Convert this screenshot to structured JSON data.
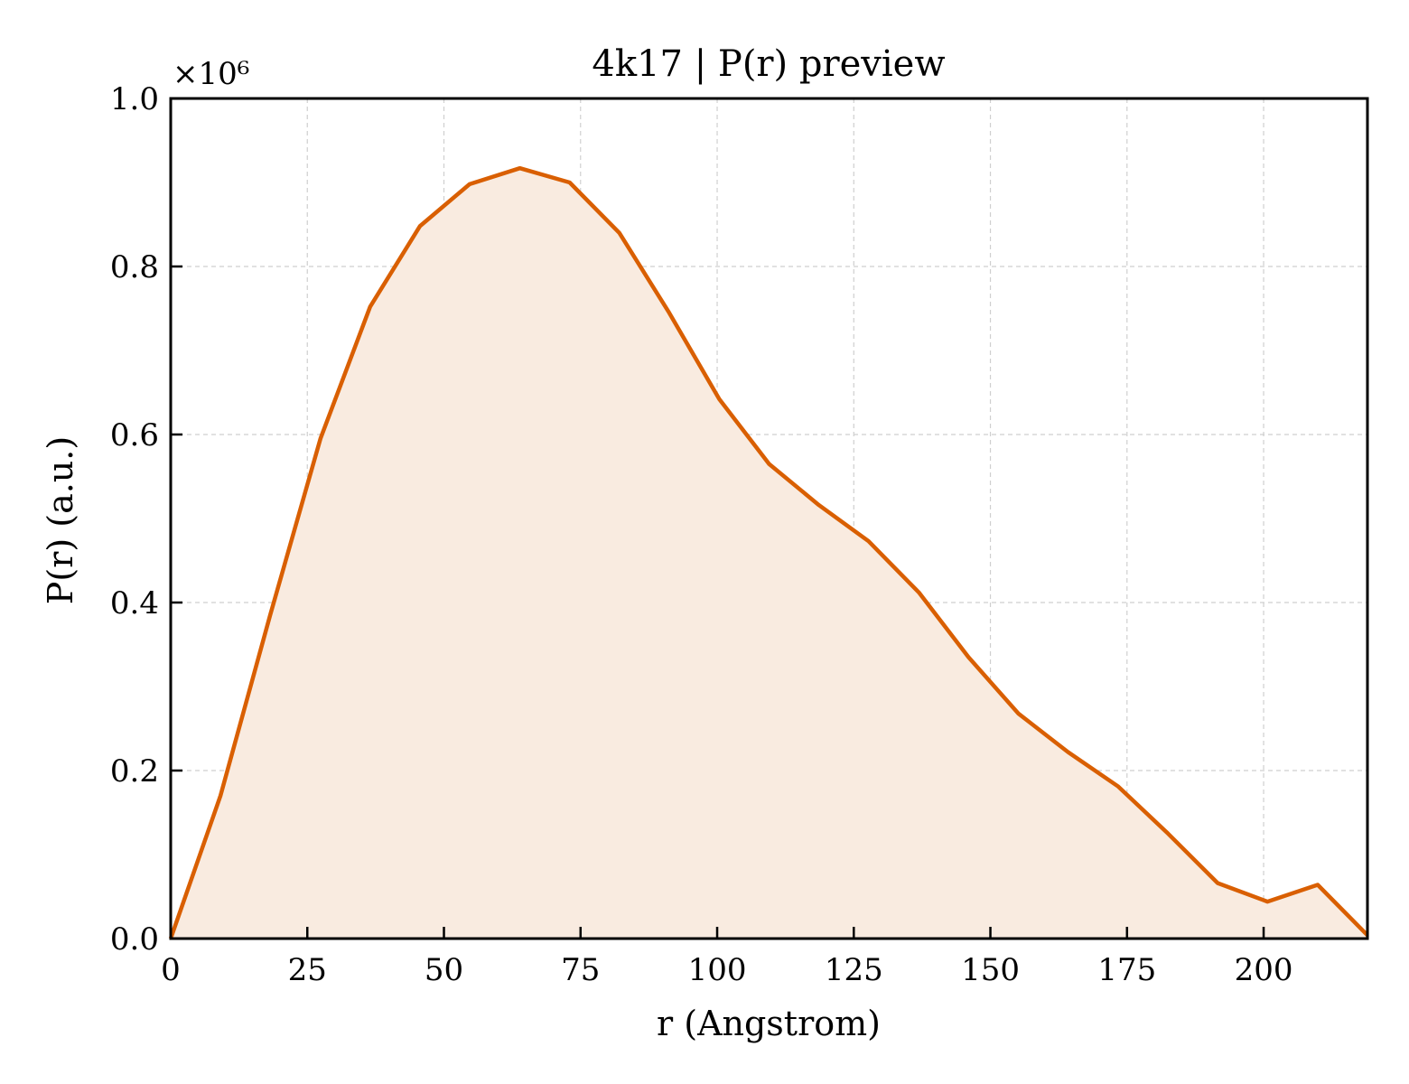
{
  "chart_data": {
    "type": "area",
    "title": "4k17 | P(r) preview",
    "xlabel": "r (Angstrom)",
    "ylabel": "P(r) (a.u.)",
    "y_offset_label": "×10⁶",
    "xlim": [
      0,
      219
    ],
    "ylim": [
      0,
      1.0
    ],
    "y_scale_factor": 1000000,
    "xticks": [
      0,
      25,
      50,
      75,
      100,
      125,
      150,
      175,
      200
    ],
    "xtick_labels": [
      "0",
      "25",
      "50",
      "75",
      "100",
      "125",
      "150",
      "175",
      "200"
    ],
    "yticks": [
      0.0,
      0.2,
      0.4,
      0.6,
      0.8,
      1.0
    ],
    "ytick_labels": [
      "0.0",
      "0.2",
      "0.4",
      "0.6",
      "0.8",
      "1.0"
    ],
    "grid": true,
    "colors": {
      "line": "#d95f02",
      "fill": "#f9ebe0"
    },
    "x": [
      0,
      9.1,
      18.2,
      27.4,
      36.5,
      45.6,
      54.7,
      63.9,
      73.0,
      82.1,
      91.2,
      100.4,
      109.5,
      118.6,
      127.7,
      136.9,
      146.0,
      155.1,
      164.2,
      173.4,
      182.5,
      191.6,
      200.7,
      209.9,
      219.0
    ],
    "values": [
      0.0,
      0.17,
      0.385,
      0.595,
      0.752,
      0.848,
      0.898,
      0.917,
      0.9,
      0.84,
      0.745,
      0.642,
      0.565,
      0.516,
      0.473,
      0.412,
      0.335,
      0.268,
      0.222,
      0.181,
      0.125,
      0.066,
      0.044,
      0.064,
      0.004
    ]
  }
}
